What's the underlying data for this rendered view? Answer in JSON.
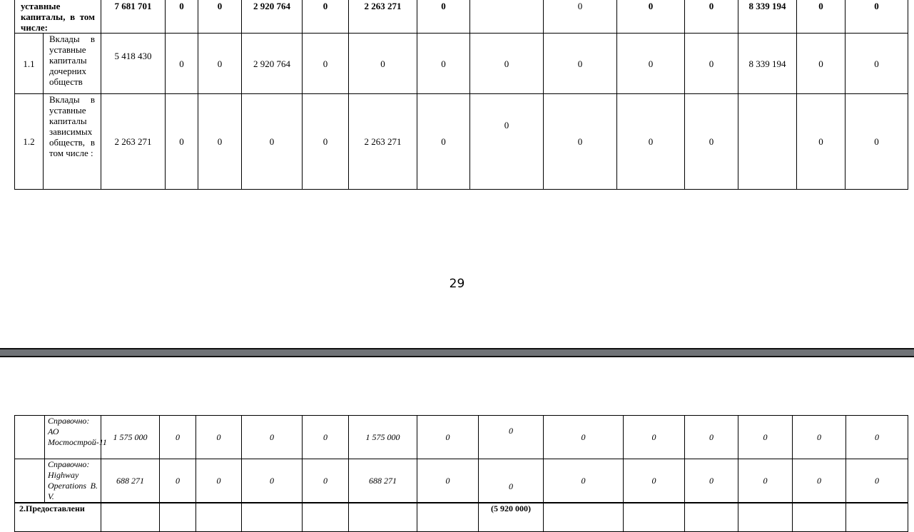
{
  "page1": {
    "page_number": "29",
    "rows": [
      {
        "num": "",
        "label": "уставные капиталы, в том числе:",
        "values": [
          "7 681 701",
          "0",
          "0",
          "2 920 764",
          "0",
          "2 263 271",
          "0",
          "",
          "0",
          "0",
          "0",
          "8 339 194",
          "0",
          "0"
        ]
      },
      {
        "num": "1.1",
        "label": "Вклады в уставные капиталы дочерних обществ",
        "values": [
          "5 418 430",
          "0",
          "0",
          "2 920 764",
          "0",
          "0",
          "0",
          "0",
          "0",
          "0",
          "0",
          "8 339 194",
          "0",
          "0"
        ]
      },
      {
        "num": "1.2",
        "label": "Вклады в уставные капиталы зависимых обществ, в том числе :",
        "values": [
          "2 263 271",
          "0",
          "0",
          "0",
          "0",
          "2 263 271",
          "0",
          "0",
          "0",
          "0",
          "0",
          "",
          "0",
          "0"
        ]
      }
    ]
  },
  "page2": {
    "rows": [
      {
        "num": "",
        "label": "Справочно: АО Мостострой-11",
        "values": [
          "1 575 000",
          "0",
          "0",
          "0",
          "0",
          "1 575 000",
          "0",
          "0",
          "0",
          "0",
          "0",
          "0",
          "0",
          "0"
        ]
      },
      {
        "num": "",
        "label": "Справочно: Highway Operations B. V.",
        "values": [
          "688 271",
          "0",
          "0",
          "0",
          "0",
          "688 271",
          "0",
          "0",
          "0",
          "0",
          "0",
          "0",
          "0",
          "0"
        ]
      },
      {
        "label": "2.Предоставлени",
        "values": [
          "",
          "",
          "",
          "",
          "",
          "",
          "",
          "(5 920 000)",
          "",
          "",
          "",
          "",
          "",
          ""
        ]
      }
    ]
  }
}
